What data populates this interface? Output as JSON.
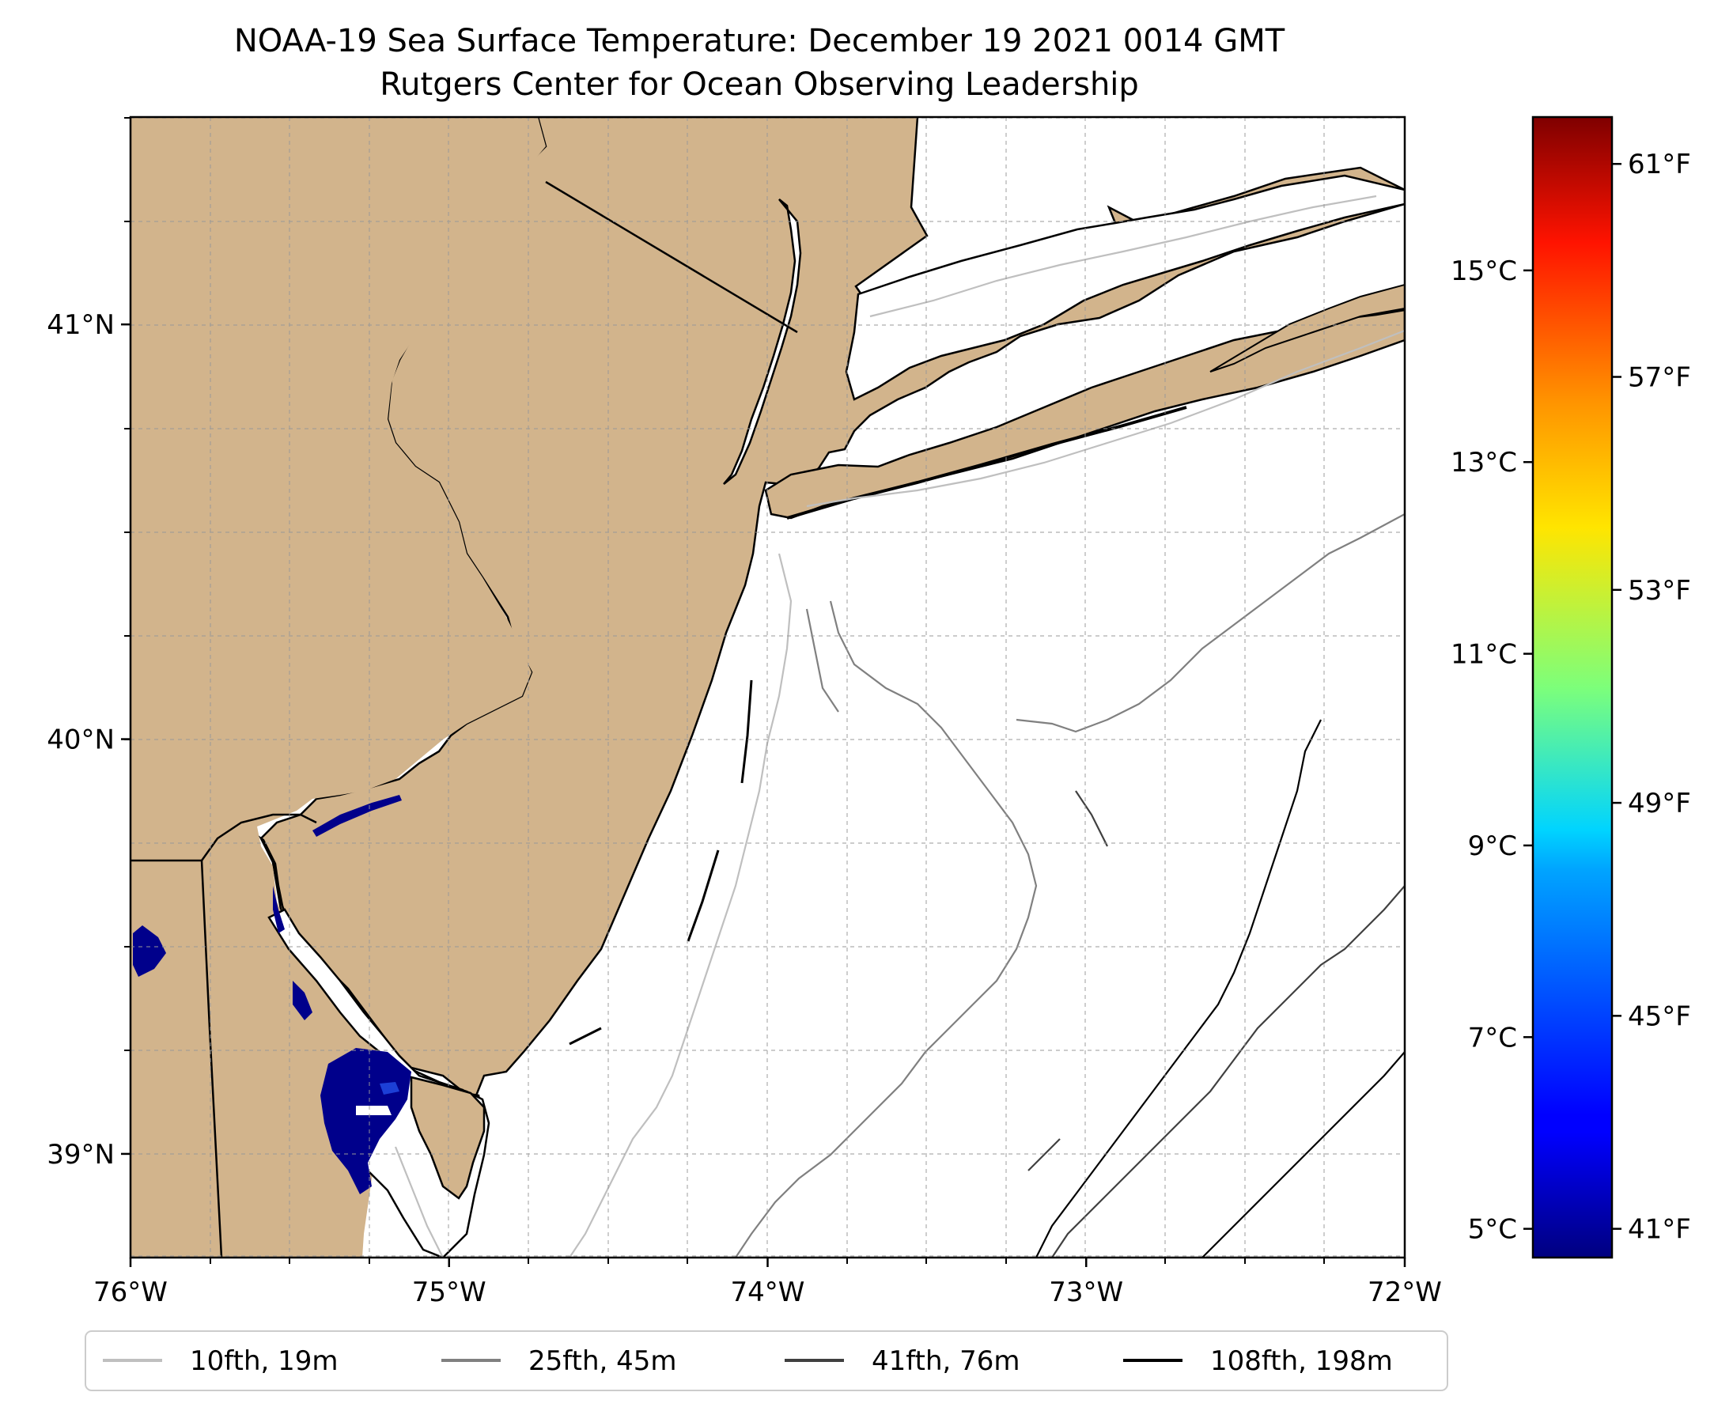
{
  "title": {
    "line1": "NOAA-19 Sea Surface Temperature: December 19 2021 0014 GMT",
    "line2": "Rutgers Center for Ocean Observing Leadership"
  },
  "map": {
    "extent": {
      "lon_min": -76,
      "lon_max": -72,
      "lat_min": 38.75,
      "lat_max": 41.5
    },
    "land_color": "#d2b48c",
    "water_color": "#ffffff",
    "coastline_color": "#000000",
    "gridlines": true,
    "x_ticks": [
      {
        "lon": -76,
        "label": "76°W"
      },
      {
        "lon": -75,
        "label": "75°W"
      },
      {
        "lon": -74,
        "label": "74°W"
      },
      {
        "lon": -73,
        "label": "73°W"
      },
      {
        "lon": -72,
        "label": "72°W"
      }
    ],
    "y_ticks": [
      {
        "lat": 41,
        "label": "41°N"
      },
      {
        "lat": 40,
        "label": "40°N"
      },
      {
        "lat": 39,
        "label": "39°N"
      }
    ],
    "sst_note": "Only cold SST (~41°F, dark blue) visible in Delaware Bay and Delaware River; remaining ocean shown white."
  },
  "colorbar": {
    "colormap": "jet",
    "celsius_ticks": [
      {
        "value": 5,
        "label": "5°C"
      },
      {
        "value": 7,
        "label": "7°C"
      },
      {
        "value": 9,
        "label": "9°C"
      },
      {
        "value": 11,
        "label": "11°C"
      },
      {
        "value": 13,
        "label": "13°C"
      },
      {
        "value": 15,
        "label": "15°C"
      }
    ],
    "fahrenheit_ticks": [
      {
        "value": 41,
        "label": "41°F"
      },
      {
        "value": 45,
        "label": "45°F"
      },
      {
        "value": 49,
        "label": "49°F"
      },
      {
        "value": 53,
        "label": "53°F"
      },
      {
        "value": 57,
        "label": "57°F"
      },
      {
        "value": 61,
        "label": "61°F"
      }
    ],
    "range_c": [
      4.7,
      16.6
    ]
  },
  "legend": {
    "placement": "bottom-center",
    "items": [
      {
        "label": "10fth, 19m",
        "color": "#bfbfbf"
      },
      {
        "label": "25fth, 45m",
        "color": "#808080"
      },
      {
        "label": "41fth, 76m",
        "color": "#404040"
      },
      {
        "label": "108fth, 198m",
        "color": "#000000"
      }
    ]
  }
}
